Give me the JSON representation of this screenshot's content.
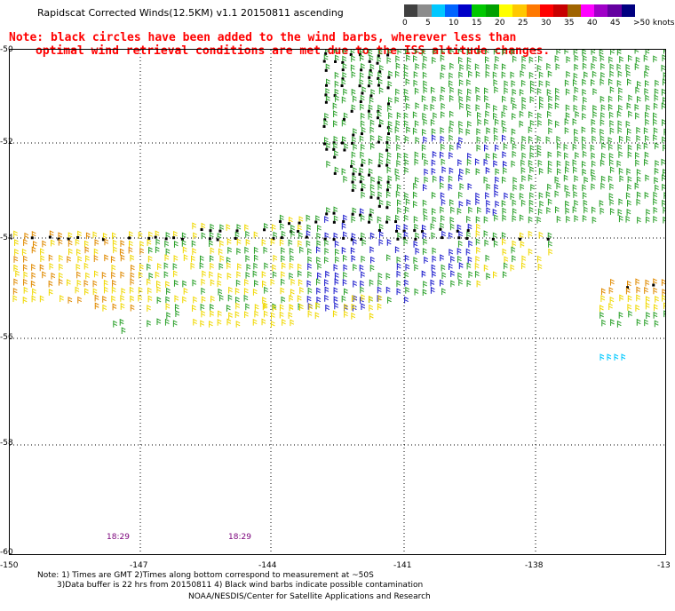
{
  "title": "Rapidscat Corrected Winds(12.5KM) v1.1 20150811 ascending",
  "note_line1": "Note: black circles have been added to the wind barbs, wherever less than",
  "note_line2": "optimal wind retrieval conditions are met due to the ISS altitude changes.",
  "colorbar": {
    "labels": [
      "0",
      "5",
      "10",
      "15",
      "20",
      "25",
      "30",
      "35",
      "40",
      "45",
      ">50 knots"
    ],
    "colors": [
      "#404040",
      "#8c8c8c",
      "#00c8ff",
      "#0064ff",
      "#0000c8",
      "#00c800",
      "#00a000",
      "#ffff00",
      "#ffc800",
      "#ff7800",
      "#ff0000",
      "#c80000",
      "#a06400",
      "#ff00ff",
      "#a000c8",
      "#6400a0",
      "#000080"
    ]
  },
  "map": {
    "lat_labels": [
      "-50",
      "-52",
      "-54",
      "-56",
      "-58",
      "-60"
    ],
    "lon_labels": [
      "-150",
      "-147",
      "-144",
      "-141",
      "-138",
      "-13"
    ],
    "time_labels": [
      "18:29",
      "18:29"
    ]
  },
  "footer": {
    "line1": "Note: 1) Times are GMT 2)Times along bottom correspond to measurement at ~50S",
    "line2": "3)Data buffer is 22 hrs from 20150811 4) Black wind barbs indicate possible contamination",
    "line3": "NOAA/NESDIS/Center for Satellite Applications and Research"
  }
}
